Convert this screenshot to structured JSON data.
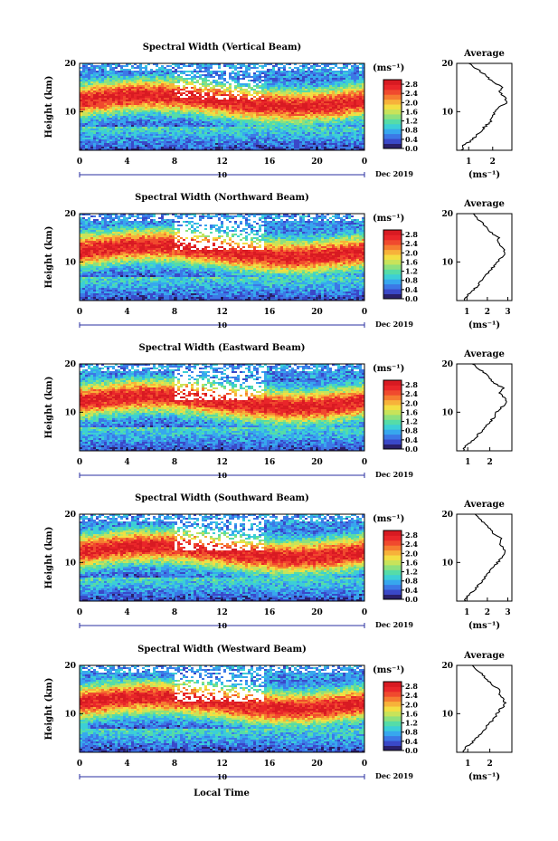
{
  "figure": {
    "bottom_xlabel": "Local Time",
    "colors": [
      "#2a1f6b",
      "#3a48c8",
      "#3c78e6",
      "#37a7ee",
      "#3ccfd6",
      "#55dca8",
      "#8ee07d",
      "#c8e35a",
      "#f3de42",
      "#f7b23a",
      "#f57c31",
      "#f04a2e",
      "#e9262a",
      "#d81a22",
      "#ffffff"
    ]
  },
  "chart_data": [
    {
      "type": "heatmap",
      "title": "Spectral Width (Vertical Beam)",
      "ylabel": "Height (km)",
      "yticks": [
        "20",
        "10"
      ],
      "ylim": [
        2,
        20
      ],
      "xticks": [
        "0",
        "4",
        "8",
        "12",
        "16",
        "20",
        "0"
      ],
      "xlim": [
        0,
        24
      ],
      "date_mark": "10",
      "date_label": "Dec 2019",
      "colorbar": {
        "unit": "(ms⁻¹)",
        "ticks": [
          "2.8",
          "2.4",
          "2.0",
          "1.6",
          "1.2",
          "0.8",
          "0.4",
          "0.0"
        ],
        "range": [
          0,
          3.0
        ]
      },
      "profile": {
        "title": "Average",
        "xlabel": "(ms⁻¹)",
        "xticks": [
          "1",
          "2"
        ],
        "xlim": [
          0.5,
          2.8
        ],
        "heights": [
          2,
          3,
          4,
          5,
          6,
          7,
          8,
          9,
          10,
          11,
          12,
          13,
          14,
          15,
          16,
          17,
          18,
          19,
          20
        ],
        "values": [
          0.7,
          0.8,
          1.1,
          1.3,
          1.5,
          1.7,
          1.9,
          2.0,
          2.1,
          2.3,
          2.6,
          2.5,
          2.3,
          2.4,
          2.1,
          1.8,
          1.6,
          1.3,
          1.0
        ]
      }
    },
    {
      "type": "heatmap",
      "title": "Spectral Width (Northward Beam)",
      "ylabel": "Height (km)",
      "yticks": [
        "20",
        "10"
      ],
      "ylim": [
        2,
        20
      ],
      "xticks": [
        "0",
        "4",
        "8",
        "12",
        "16",
        "20",
        "0"
      ],
      "xlim": [
        0,
        24
      ],
      "date_mark": "10",
      "date_label": "Dec 2019",
      "colorbar": {
        "unit": "(ms⁻¹)",
        "ticks": [
          "2.8",
          "2.4",
          "2.0",
          "1.6",
          "1.2",
          "0.8",
          "0.4",
          "0.0"
        ],
        "range": [
          0,
          3.0
        ]
      },
      "profile": {
        "title": "Average",
        "xlabel": "(ms⁻¹)",
        "xticks": [
          "1",
          "2",
          "3"
        ],
        "xlim": [
          0.5,
          3.2
        ],
        "heights": [
          2,
          3,
          4,
          5,
          6,
          7,
          8,
          9,
          10,
          11,
          12,
          13,
          14,
          15,
          16,
          17,
          18,
          19,
          20
        ],
        "values": [
          0.9,
          1.0,
          1.3,
          1.5,
          1.7,
          1.9,
          2.1,
          2.3,
          2.5,
          2.7,
          2.9,
          2.7,
          2.5,
          2.6,
          2.2,
          2.0,
          1.8,
          1.5,
          1.3
        ]
      }
    },
    {
      "type": "heatmap",
      "title": "Spectral Width (Eastward Beam)",
      "ylabel": "Height (km)",
      "yticks": [
        "20",
        "10"
      ],
      "ylim": [
        2,
        20
      ],
      "xticks": [
        "0",
        "4",
        "8",
        "12",
        "16",
        "20",
        "0"
      ],
      "xlim": [
        0,
        24
      ],
      "date_mark": "10",
      "date_label": "Dec 2019",
      "colorbar": {
        "unit": "(ms⁻¹)",
        "ticks": [
          "2.8",
          "2.4",
          "2.0",
          "1.6",
          "1.2",
          "0.8",
          "0.4",
          "0.0"
        ],
        "range": [
          0,
          3.0
        ]
      },
      "profile": {
        "title": "Average",
        "xlabel": "",
        "xticks": [
          "1",
          "2"
        ],
        "xlim": [
          0.5,
          3.0
        ],
        "heights": [
          2,
          3,
          4,
          5,
          6,
          7,
          8,
          9,
          10,
          11,
          12,
          13,
          14,
          15,
          16,
          17,
          18,
          19,
          20
        ],
        "values": [
          0.8,
          0.9,
          1.2,
          1.4,
          1.6,
          1.8,
          2.0,
          2.2,
          2.3,
          2.5,
          2.8,
          2.7,
          2.4,
          2.6,
          2.2,
          2.0,
          1.8,
          1.5,
          1.2
        ]
      }
    },
    {
      "type": "heatmap",
      "title": "Spectral Width (Southward Beam)",
      "ylabel": "Height (km)",
      "yticks": [
        "20",
        "10"
      ],
      "ylim": [
        2,
        20
      ],
      "xticks": [
        "0",
        "4",
        "8",
        "12",
        "16",
        "20",
        "0"
      ],
      "xlim": [
        0,
        24
      ],
      "date_mark": "10",
      "date_label": "Dec 2019",
      "colorbar": {
        "unit": "(ms⁻¹)",
        "ticks": [
          "2.8",
          "2.4",
          "2.0",
          "1.6",
          "1.2",
          "0.8",
          "0.4",
          "0.0"
        ],
        "range": [
          0,
          3.0
        ]
      },
      "profile": {
        "title": "Average",
        "xlabel": "(ms⁻¹)",
        "xticks": [
          "1",
          "2",
          "3"
        ],
        "xlim": [
          0.5,
          3.2
        ],
        "heights": [
          2,
          3,
          4,
          5,
          6,
          7,
          8,
          9,
          10,
          11,
          12,
          13,
          14,
          15,
          16,
          17,
          18,
          19,
          20
        ],
        "values": [
          0.9,
          1.0,
          1.3,
          1.5,
          1.7,
          1.9,
          2.1,
          2.3,
          2.5,
          2.7,
          2.9,
          2.8,
          2.6,
          2.7,
          2.3,
          2.1,
          1.9,
          1.6,
          1.4
        ]
      }
    },
    {
      "type": "heatmap",
      "title": "Spectral Width (Westward Beam)",
      "ylabel": "Height (km)",
      "yticks": [
        "20",
        "10"
      ],
      "ylim": [
        2,
        20
      ],
      "xticks": [
        "0",
        "4",
        "8",
        "12",
        "16",
        "20",
        "0"
      ],
      "xlim": [
        0,
        24
      ],
      "date_mark": "10",
      "date_label": "Dec 2019",
      "colorbar": {
        "unit": "(ms⁻¹)",
        "ticks": [
          "2.8",
          "2.4",
          "2.0",
          "1.6",
          "1.2",
          "0.8",
          "0.4",
          "0.0"
        ],
        "range": [
          0,
          3.0
        ]
      },
      "profile": {
        "title": "Average",
        "xlabel": "(ms⁻¹)",
        "xticks": [
          "1",
          "2"
        ],
        "xlim": [
          0.5,
          3.0
        ],
        "heights": [
          2,
          3,
          4,
          5,
          6,
          7,
          8,
          9,
          10,
          11,
          12,
          13,
          14,
          15,
          16,
          17,
          18,
          19,
          20
        ],
        "values": [
          0.8,
          0.9,
          1.2,
          1.4,
          1.6,
          1.8,
          2.0,
          2.2,
          2.3,
          2.5,
          2.7,
          2.6,
          2.4,
          2.5,
          2.1,
          1.9,
          1.7,
          1.4,
          1.2
        ]
      }
    }
  ]
}
